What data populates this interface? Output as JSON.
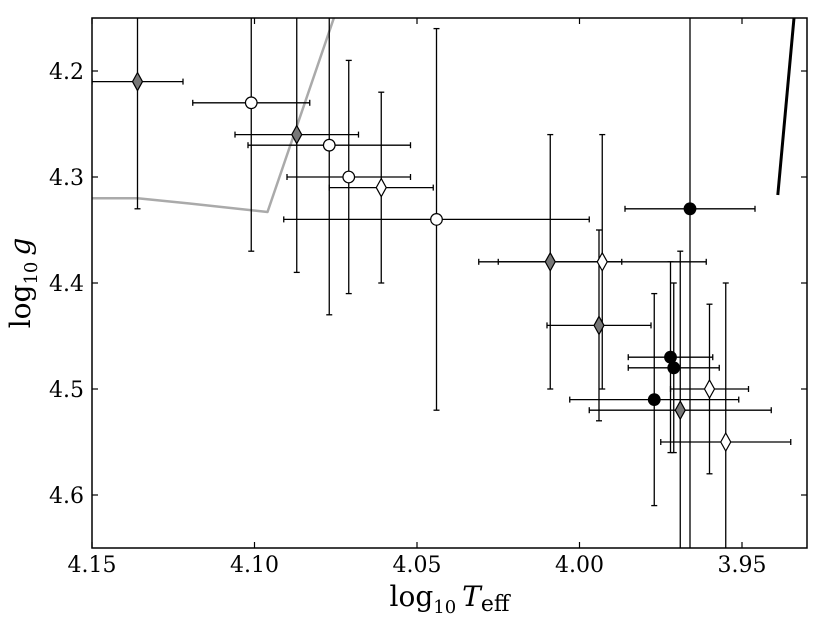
{
  "chart_data": {
    "type": "scatter",
    "title": "",
    "xlabel": {
      "base": "log",
      "sub": "10",
      "var": "T",
      "varsub": "eff"
    },
    "ylabel": {
      "base": "log",
      "sub": "10",
      "var": "g"
    },
    "xlim": [
      4.15,
      3.93
    ],
    "ylim": [
      4.65,
      4.15
    ],
    "x_inverted": true,
    "y_inverted": true,
    "grid": false,
    "xticks": [
      {
        "v": 4.15,
        "label": "4.15"
      },
      {
        "v": 4.1,
        "label": "4.10"
      },
      {
        "v": 4.05,
        "label": "4.05"
      },
      {
        "v": 4.0,
        "label": "4.00"
      },
      {
        "v": 3.95,
        "label": "3.95"
      }
    ],
    "yticks": [
      {
        "v": 4.2,
        "label": "4.2"
      },
      {
        "v": 4.3,
        "label": "4.3"
      },
      {
        "v": 4.4,
        "label": "4.4"
      },
      {
        "v": 4.5,
        "label": "4.5"
      },
      {
        "v": 4.6,
        "label": "4.6"
      }
    ],
    "lines": [
      {
        "name": "",
        "color": "#aaaaaa",
        "width": 2.5,
        "points": [
          [
            4.151,
            4.32
          ],
          [
            4.136,
            4.32
          ],
          [
            4.12,
            4.325
          ],
          [
            4.096,
            4.333
          ],
          [
            4.07,
            4.1
          ]
        ]
      },
      {
        "name": "",
        "color": "#000000",
        "width": 3,
        "points": [
          [
            3.939,
            4.317
          ],
          [
            3.934,
            4.15
          ]
        ]
      }
    ],
    "series": [
      {
        "name": "",
        "marker": "circle",
        "fill": "#ffffff",
        "points": [
          {
            "x": 4.101,
            "y": 4.23,
            "xerr": 0.018,
            "yerr": 0.14
          },
          {
            "x": 4.077,
            "y": 4.27,
            "xerr": 0.025,
            "yerr": 0.16
          },
          {
            "x": 4.071,
            "y": 4.3,
            "xerr": 0.019,
            "yerr": 0.11
          },
          {
            "x": 4.044,
            "y": 4.34,
            "xerr": 0.047,
            "yerr": 0.18
          }
        ]
      },
      {
        "name": "",
        "marker": "diamond",
        "fill": "#777777",
        "points": [
          {
            "x": 4.136,
            "y": 4.21,
            "xerr": 0.014,
            "yerr": 0.12
          },
          {
            "x": 4.087,
            "y": 4.26,
            "xerr": 0.019,
            "yerr": 0.13
          },
          {
            "x": 4.009,
            "y": 4.38,
            "xerr": 0.022,
            "yerr": 0.12
          },
          {
            "x": 3.994,
            "y": 4.44,
            "xerr": 0.016,
            "yerr": 0.09
          },
          {
            "x": 3.969,
            "y": 4.52,
            "xerr": 0.028,
            "yerr": 0.15
          }
        ]
      },
      {
        "name": "",
        "marker": "diamond",
        "fill": "#ffffff",
        "points": [
          {
            "x": 4.061,
            "y": 4.31,
            "xerr": 0.016,
            "yerr": 0.09
          },
          {
            "x": 3.993,
            "y": 4.38,
            "xerr": 0.032,
            "yerr": 0.12
          },
          {
            "x": 3.96,
            "y": 4.5,
            "xerr": 0.012,
            "yerr": 0.08
          },
          {
            "x": 3.955,
            "y": 4.55,
            "xerr": 0.02,
            "yerr": 0.15
          }
        ]
      },
      {
        "name": "",
        "marker": "circle",
        "fill": "#000000",
        "points": [
          {
            "x": 3.966,
            "y": 4.33,
            "xerr": 0.02,
            "yerr": 0.36
          },
          {
            "x": 3.972,
            "y": 4.47,
            "xerr": 0.013,
            "yerr": 0.09
          },
          {
            "x": 3.971,
            "y": 4.48,
            "xerr": 0.014,
            "yerr": 0.08
          },
          {
            "x": 3.977,
            "y": 4.51,
            "xerr": 0.026,
            "yerr": 0.1
          }
        ]
      }
    ]
  }
}
